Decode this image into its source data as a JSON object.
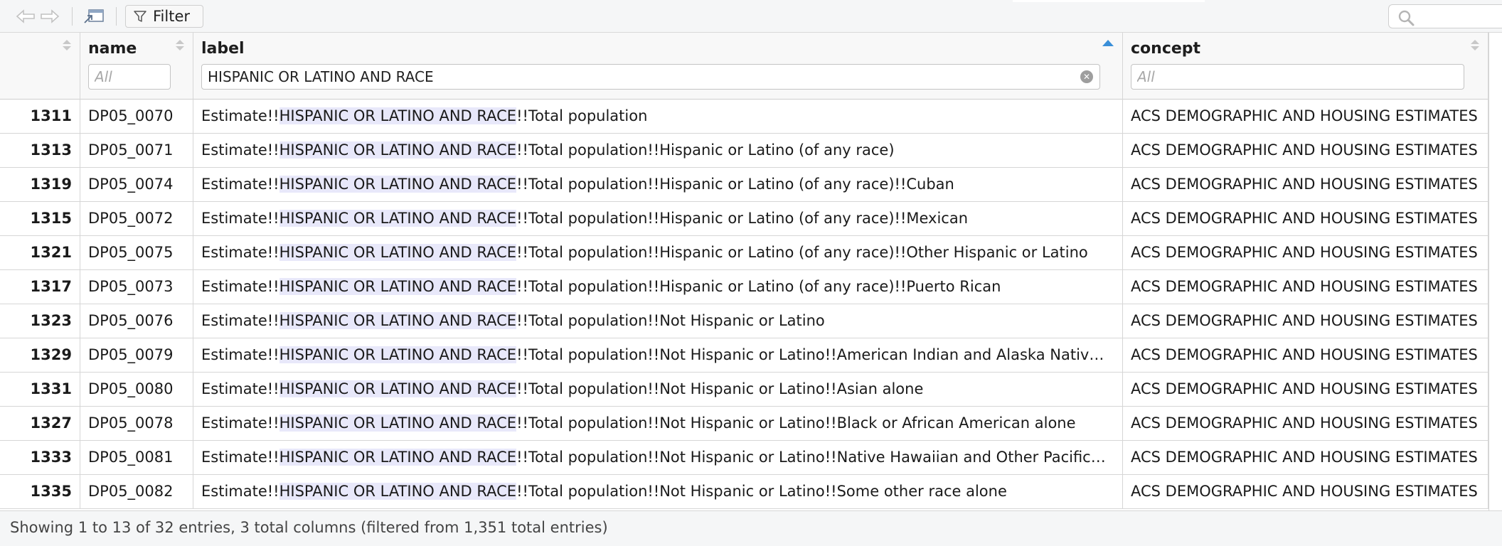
{
  "toolbar": {
    "back_icon": "arrow-left-icon",
    "forward_icon": "arrow-right-icon",
    "popout_icon": "popout-window-icon",
    "filter_icon": "funnel-icon",
    "filter_label": "Filter",
    "search_icon": "search-icon",
    "search_value": ""
  },
  "columns": {
    "index": {
      "sort": "none"
    },
    "name": {
      "title": "name",
      "filter_placeholder": "All",
      "filter_value": ""
    },
    "label": {
      "title": "label",
      "filter_placeholder": "All",
      "filter_value": "HISPANIC OR LATINO AND RACE",
      "sort": "ascending"
    },
    "concept": {
      "title": "concept",
      "filter_placeholder": "All",
      "filter_value": ""
    }
  },
  "highlight": "HISPANIC OR LATINO AND RACE",
  "rows": [
    {
      "idx": "1311",
      "name": "DP05_0070",
      "pre": "Estimate!!",
      "match": "HISPANIC OR LATINO AND RACE",
      "rest": "!!Total population",
      "concept": "ACS DEMOGRAPHIC AND HOUSING ESTIMATES"
    },
    {
      "idx": "1313",
      "name": "DP05_0071",
      "pre": "Estimate!!",
      "match": "HISPANIC OR LATINO AND RACE",
      "rest": "!!Total population!!Hispanic or Latino (of any race)",
      "concept": "ACS DEMOGRAPHIC AND HOUSING ESTIMATES"
    },
    {
      "idx": "1319",
      "name": "DP05_0074",
      "pre": "Estimate!!",
      "match": "HISPANIC OR LATINO AND RACE",
      "rest": "!!Total population!!Hispanic or Latino (of any race)!!Cuban",
      "concept": "ACS DEMOGRAPHIC AND HOUSING ESTIMATES"
    },
    {
      "idx": "1315",
      "name": "DP05_0072",
      "pre": "Estimate!!",
      "match": "HISPANIC OR LATINO AND RACE",
      "rest": "!!Total population!!Hispanic or Latino (of any race)!!Mexican",
      "concept": "ACS DEMOGRAPHIC AND HOUSING ESTIMATES"
    },
    {
      "idx": "1321",
      "name": "DP05_0075",
      "pre": "Estimate!!",
      "match": "HISPANIC OR LATINO AND RACE",
      "rest": "!!Total population!!Hispanic or Latino (of any race)!!Other Hispanic or Latino",
      "concept": "ACS DEMOGRAPHIC AND HOUSING ESTIMATES"
    },
    {
      "idx": "1317",
      "name": "DP05_0073",
      "pre": "Estimate!!",
      "match": "HISPANIC OR LATINO AND RACE",
      "rest": "!!Total population!!Hispanic or Latino (of any race)!!Puerto Rican",
      "concept": "ACS DEMOGRAPHIC AND HOUSING ESTIMATES"
    },
    {
      "idx": "1323",
      "name": "DP05_0076",
      "pre": "Estimate!!",
      "match": "HISPANIC OR LATINO AND RACE",
      "rest": "!!Total population!!Not Hispanic or Latino",
      "concept": "ACS DEMOGRAPHIC AND HOUSING ESTIMATES"
    },
    {
      "idx": "1329",
      "name": "DP05_0079",
      "pre": "Estimate!!",
      "match": "HISPANIC OR LATINO AND RACE",
      "rest": "!!Total population!!Not Hispanic or Latino!!American Indian and Alaska Nativ…",
      "concept": "ACS DEMOGRAPHIC AND HOUSING ESTIMATES"
    },
    {
      "idx": "1331",
      "name": "DP05_0080",
      "pre": "Estimate!!",
      "match": "HISPANIC OR LATINO AND RACE",
      "rest": "!!Total population!!Not Hispanic or Latino!!Asian alone",
      "concept": "ACS DEMOGRAPHIC AND HOUSING ESTIMATES"
    },
    {
      "idx": "1327",
      "name": "DP05_0078",
      "pre": "Estimate!!",
      "match": "HISPANIC OR LATINO AND RACE",
      "rest": "!!Total population!!Not Hispanic or Latino!!Black or African American alone",
      "concept": "ACS DEMOGRAPHIC AND HOUSING ESTIMATES"
    },
    {
      "idx": "1333",
      "name": "DP05_0081",
      "pre": "Estimate!!",
      "match": "HISPANIC OR LATINO AND RACE",
      "rest": "!!Total population!!Not Hispanic or Latino!!Native Hawaiian and Other Pacific…",
      "concept": "ACS DEMOGRAPHIC AND HOUSING ESTIMATES"
    },
    {
      "idx": "1335",
      "name": "DP05_0082",
      "pre": "Estimate!!",
      "match": "HISPANIC OR LATINO AND RACE",
      "rest": "!!Total population!!Not Hispanic or Latino!!Some other race alone",
      "concept": "ACS DEMOGRAPHIC AND HOUSING ESTIMATES"
    }
  ],
  "footer": {
    "status": "Showing 1 to 13 of 32 entries, 3 total columns (filtered from 1,351 total entries)"
  },
  "colors": {
    "highlight": "#e8e8fa",
    "sort_active": "#3a8fd8",
    "header_bg": "#f8f8f8",
    "grid_line": "#d6d6d6"
  }
}
